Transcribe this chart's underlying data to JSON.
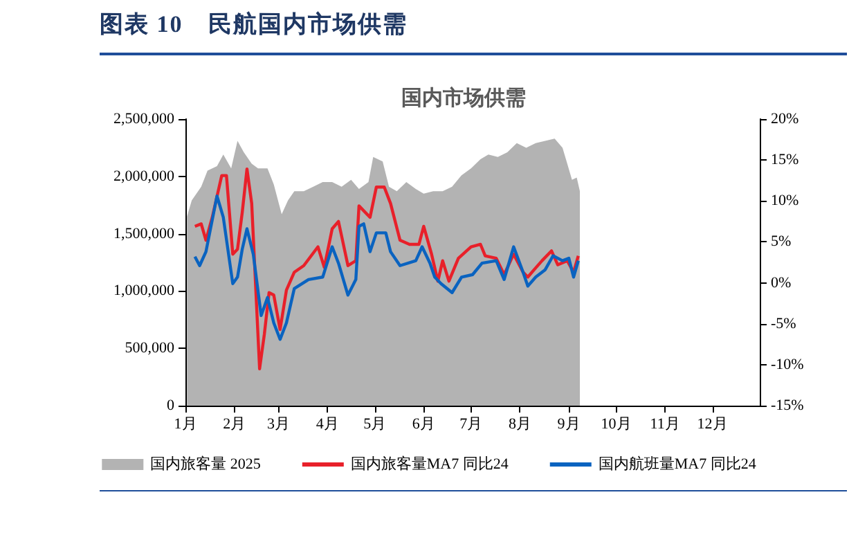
{
  "chart_data": {
    "type": "line",
    "title": "图表 10　民航国内市场供需",
    "subtitle": "国内市场供需",
    "xlim": [
      "2025-01-01",
      "2025-12-31"
    ],
    "xticks": [
      {
        "value": "2025-01-01",
        "label": "1月"
      },
      {
        "value": "2025-02-01",
        "label": "2月"
      },
      {
        "value": "2025-03-01",
        "label": "3月"
      },
      {
        "value": "2025-04-01",
        "label": "4月"
      },
      {
        "value": "2025-05-01",
        "label": "5月"
      },
      {
        "value": "2025-06-01",
        "label": "6月"
      },
      {
        "value": "2025-07-01",
        "label": "7月"
      },
      {
        "value": "2025-08-01",
        "label": "8月"
      },
      {
        "value": "2025-09-01",
        "label": "9月"
      },
      {
        "value": "2025-10-01",
        "label": "10月"
      },
      {
        "value": "2025-11-01",
        "label": "11月"
      },
      {
        "value": "2025-12-01",
        "label": "12月"
      }
    ],
    "ylim": [
      0,
      2500000
    ],
    "yticks": [
      {
        "value": 0,
        "label": "0"
      },
      {
        "value": 500000,
        "label": "500,000"
      },
      {
        "value": 1000000,
        "label": "1,000,000"
      },
      {
        "value": 1500000,
        "label": "1,500,000"
      },
      {
        "value": 2000000,
        "label": "2,000,000"
      },
      {
        "value": 2500000,
        "label": "2,500,000"
      }
    ],
    "y2lim": [
      -15,
      20
    ],
    "y2ticks": [
      {
        "value": -15,
        "label": "-15%"
      },
      {
        "value": -10,
        "label": "-10%"
      },
      {
        "value": -5,
        "label": "-5%"
      },
      {
        "value": 0,
        "label": "0%"
      },
      {
        "value": 5,
        "label": "5%"
      },
      {
        "value": 10,
        "label": "10%"
      },
      {
        "value": 15,
        "label": "15%"
      },
      {
        "value": 20,
        "label": "20%"
      }
    ],
    "legend": "bottom",
    "series": [
      {
        "name": "国内旅客量 2025",
        "type": "area",
        "color": "#b3b3b3",
        "x": [
          "2025-01-02",
          "2025-01-05",
          "2025-01-11",
          "2025-01-15",
          "2025-01-21",
          "2025-01-25",
          "2025-01-30",
          "2025-02-03",
          "2025-02-07",
          "2025-02-12",
          "2025-02-16",
          "2025-02-22",
          "2025-02-26",
          "2025-03-03",
          "2025-03-07",
          "2025-03-11",
          "2025-03-17",
          "2025-03-23",
          "2025-03-29",
          "2025-04-04",
          "2025-04-10",
          "2025-04-16",
          "2025-04-21",
          "2025-04-27",
          "2025-04-30",
          "2025-05-06",
          "2025-05-10",
          "2025-05-15",
          "2025-05-21",
          "2025-05-27",
          "2025-06-01",
          "2025-06-07",
          "2025-06-13",
          "2025-06-19",
          "2025-06-25",
          "2025-07-01",
          "2025-07-07",
          "2025-07-12",
          "2025-07-18",
          "2025-07-24",
          "2025-07-30",
          "2025-08-05",
          "2025-08-11",
          "2025-08-17",
          "2025-08-23",
          "2025-08-28",
          "2025-08-31",
          "2025-09-03",
          "2025-09-06",
          "2025-09-08"
        ],
        "values": [
          1650000,
          1790000,
          1910000,
          2050000,
          2090000,
          2190000,
          2070000,
          2310000,
          2210000,
          2110000,
          2070000,
          2070000,
          1930000,
          1670000,
          1790000,
          1870000,
          1870000,
          1910000,
          1950000,
          1950000,
          1910000,
          1970000,
          1890000,
          1950000,
          2170000,
          2130000,
          1910000,
          1870000,
          1950000,
          1890000,
          1850000,
          1870000,
          1870000,
          1910000,
          2010000,
          2070000,
          2150000,
          2190000,
          2170000,
          2210000,
          2290000,
          2250000,
          2290000,
          2310000,
          2330000,
          2250000,
          2110000,
          1970000,
          1990000,
          1870000
        ]
      },
      {
        "name": "国内旅客量MA7 同比24",
        "axis": "y2",
        "color": "#e8202a",
        "x": [
          "2025-01-07",
          "2025-01-11",
          "2025-01-14",
          "2025-01-18",
          "2025-01-24",
          "2025-01-27",
          "2025-01-31",
          "2025-02-03",
          "2025-02-06",
          "2025-02-09",
          "2025-02-12",
          "2025-02-17",
          "2025-02-20",
          "2025-02-23",
          "2025-02-26",
          "2025-03-02",
          "2025-03-06",
          "2025-03-11",
          "2025-03-17",
          "2025-03-26",
          "2025-03-30",
          "2025-04-04",
          "2025-04-08",
          "2025-04-14",
          "2025-04-19",
          "2025-04-21",
          "2025-04-28",
          "2025-05-02",
          "2025-05-07",
          "2025-05-11",
          "2025-05-17",
          "2025-05-23",
          "2025-05-29",
          "2025-06-01",
          "2025-06-06",
          "2025-06-10",
          "2025-06-13",
          "2025-06-17",
          "2025-06-23",
          "2025-07-01",
          "2025-07-07",
          "2025-07-10",
          "2025-07-17",
          "2025-07-22",
          "2025-07-28",
          "2025-08-03",
          "2025-08-06",
          "2025-08-10",
          "2025-08-15",
          "2025-08-21",
          "2025-08-25",
          "2025-08-31",
          "2025-09-04",
          "2025-09-07"
        ],
        "values": [
          6.9,
          7.2,
          5.2,
          8.0,
          13.1,
          13.1,
          3.5,
          4.1,
          8.6,
          13.9,
          9.7,
          -10.5,
          -6.3,
          -1.2,
          -1.5,
          -5.7,
          -0.9,
          1.3,
          2.1,
          4.4,
          1.9,
          6.6,
          7.5,
          2.1,
          2.7,
          9.4,
          8.0,
          11.7,
          11.7,
          9.7,
          5.2,
          4.7,
          4.7,
          6.9,
          3.5,
          0.2,
          2.7,
          0.2,
          3.0,
          4.4,
          4.7,
          3.3,
          3.0,
          1.0,
          3.5,
          1.3,
          0.7,
          1.6,
          2.7,
          3.9,
          2.2,
          2.7,
          1.3,
          3.3
        ]
      },
      {
        "name": "国内航班量MA7 同比24",
        "axis": "y2",
        "color": "#0a63c0",
        "x": [
          "2025-01-07",
          "2025-01-10",
          "2025-01-14",
          "2025-01-21",
          "2025-01-25",
          "2025-01-31",
          "2025-02-03",
          "2025-02-06",
          "2025-02-09",
          "2025-02-13",
          "2025-02-18",
          "2025-02-22",
          "2025-02-26",
          "2025-03-02",
          "2025-03-06",
          "2025-03-11",
          "2025-03-20",
          "2025-03-29",
          "2025-04-04",
          "2025-04-08",
          "2025-04-14",
          "2025-04-19",
          "2025-04-21",
          "2025-04-24",
          "2025-04-28",
          "2025-05-02",
          "2025-05-08",
          "2025-05-11",
          "2025-05-17",
          "2025-05-27",
          "2025-05-31",
          "2025-06-05",
          "2025-06-08",
          "2025-06-12",
          "2025-06-19",
          "2025-06-25",
          "2025-07-02",
          "2025-07-08",
          "2025-07-17",
          "2025-07-22",
          "2025-07-28",
          "2025-08-03",
          "2025-08-06",
          "2025-08-11",
          "2025-08-17",
          "2025-08-22",
          "2025-08-28",
          "2025-09-01",
          "2025-09-04",
          "2025-09-07"
        ],
        "values": [
          3.2,
          2.1,
          3.8,
          10.6,
          8.0,
          -0.1,
          0.7,
          4.1,
          6.6,
          3.5,
          -4.0,
          -1.8,
          -4.9,
          -6.9,
          -4.9,
          -0.7,
          0.4,
          0.7,
          4.4,
          2.4,
          -1.5,
          0.4,
          6.9,
          7.2,
          3.8,
          6.1,
          6.1,
          3.8,
          2.1,
          2.7,
          4.4,
          2.4,
          0.7,
          -0.1,
          -1.2,
          0.7,
          1.0,
          2.4,
          2.7,
          0.4,
          4.4,
          1.3,
          -0.4,
          0.7,
          1.6,
          3.3,
          2.7,
          3.0,
          0.7,
          2.7
        ]
      }
    ]
  }
}
